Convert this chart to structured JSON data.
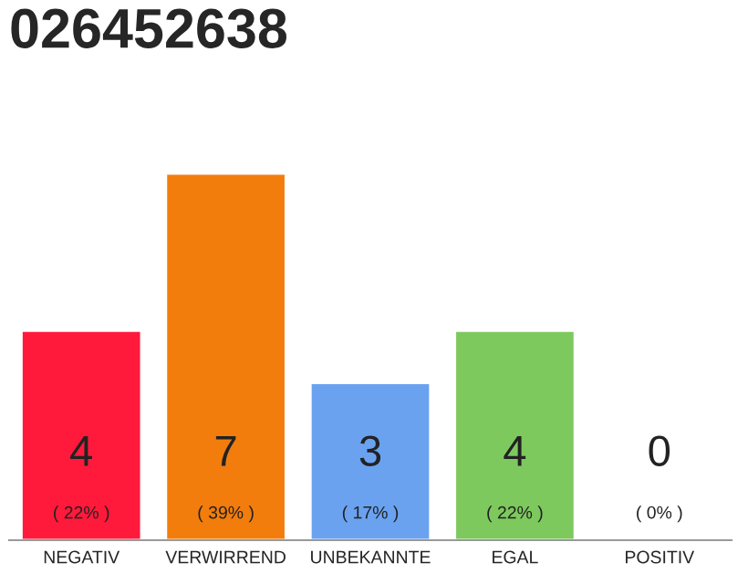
{
  "chart_data": {
    "type": "bar",
    "title": "026452638",
    "categories": [
      "NEGATIV",
      "VERWIRREND",
      "UNBEKANNTE",
      "EGAL",
      "POSITIV"
    ],
    "values": [
      4,
      7,
      3,
      4,
      0
    ],
    "colors": [
      "#ff1a3c",
      "#f27d0c",
      "#6aa2f0",
      "#7dc95e",
      null
    ],
    "value_labels": [
      "4\n( 22% )",
      "7\n( 39% )",
      "3\n( 17% )",
      "4\n( 22% )",
      "0\n( 0% )"
    ],
    "ylim": [
      0,
      7
    ],
    "grid": false,
    "legend": false
  }
}
